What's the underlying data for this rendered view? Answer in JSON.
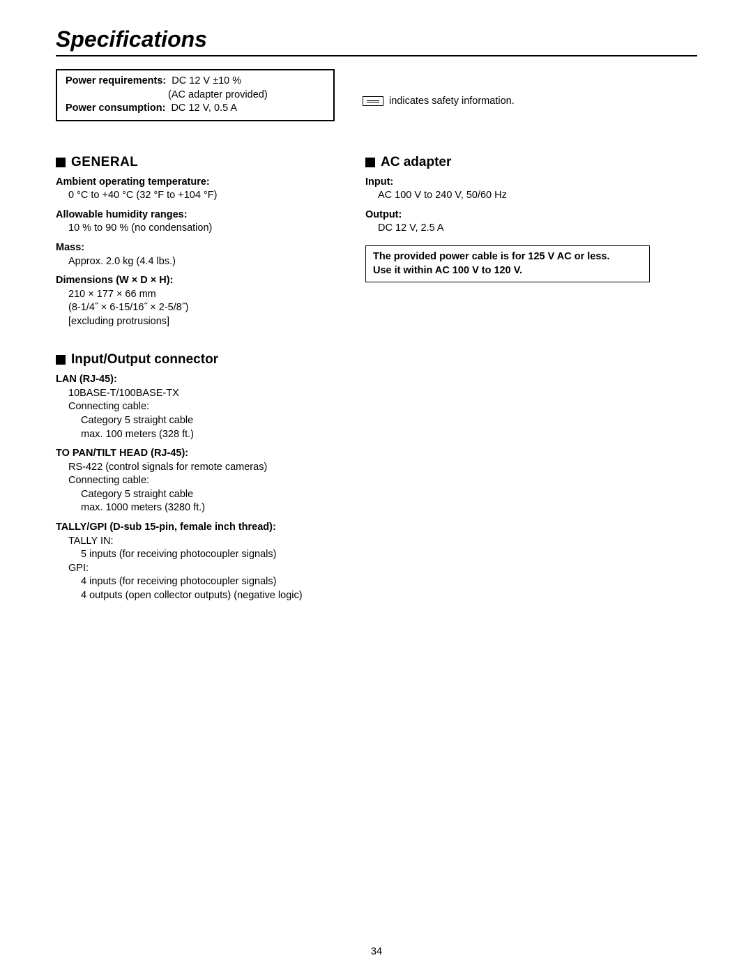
{
  "page_title": "Specifications",
  "power_box": {
    "req_label": "Power requirements:  ",
    "req_value": "DC 12 V ±10 %",
    "req_line2": "(AC adapter provided)",
    "cons_label": "Power consumption:  ",
    "cons_value": "DC 12 V, 0.5 A"
  },
  "safety_text": "indicates safety information.",
  "general": {
    "heading": "GENERAL",
    "items": [
      {
        "label": "Ambient operating temperature:",
        "value": "0 °C to +40 °C (32 °F to +104 °F)"
      },
      {
        "label": "Allowable humidity ranges:",
        "value": "10 % to 90 % (no condensation)"
      },
      {
        "label": "Mass:",
        "value": "Approx. 2.0 kg (4.4 lbs.)"
      },
      {
        "label": "Dimensions (W × D × H):",
        "value": "210 × 177 × 66 mm",
        "value2": "(8-1/4˝ × 6-15/16˝ × 2-5/8˝)",
        "value3": "[excluding protrusions]"
      }
    ]
  },
  "io": {
    "heading": "Input/Output connector",
    "lan_label": "LAN (RJ-45):",
    "lan_v1": "10BASE-T/100BASE-TX",
    "lan_v2": "Connecting cable:",
    "lan_v3": "Category 5 straight cable",
    "lan_v4": "max. 100 meters (328 ft.)",
    "pan_label": "TO PAN/TILT HEAD (RJ-45):",
    "pan_v1": "RS-422 (control signals for remote cameras)",
    "pan_v2": "Connecting cable:",
    "pan_v3": "Category 5 straight cable",
    "pan_v4": "max. 1000 meters (3280 ft.)",
    "tally_label": "TALLY/GPI (D-sub 15-pin, female inch thread):",
    "tally_v1": "TALLY IN:",
    "tally_v2": "5 inputs (for receiving photocoupler signals)",
    "tally_v3": "GPI:",
    "tally_v4": "4 inputs (for receiving photocoupler signals)",
    "tally_v5": "4 outputs (open collector outputs) (negative logic)"
  },
  "ac": {
    "heading": "AC adapter",
    "input_label": "Input:",
    "input_value": "AC 100 V to 240 V, 50/60 Hz",
    "output_label": "Output:",
    "output_value": "DC 12 V, 2.5 A",
    "notice1": "The provided power cable is for 125 V AC or less.",
    "notice2": "Use it within AC 100 V to 120 V."
  },
  "page_number": "34"
}
